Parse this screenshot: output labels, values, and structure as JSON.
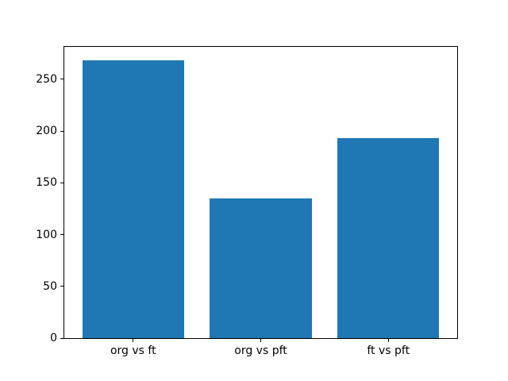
{
  "chart_data": {
    "type": "bar",
    "categories": [
      "org vs ft",
      "org vs pft",
      "ft vs pft"
    ],
    "values": [
      268,
      135,
      193
    ],
    "title": "",
    "xlabel": "",
    "ylabel": "",
    "ylim": [
      0,
      281.4
    ],
    "yticks": [
      0,
      50,
      100,
      150,
      200,
      250
    ],
    "bar_color": "#1f77b4",
    "bar_width_fraction": 0.8,
    "x_margin_fraction": 0.05,
    "grid": false,
    "legend_position": "none",
    "background_color": "#ffffff",
    "spine_color": "#000000"
  }
}
